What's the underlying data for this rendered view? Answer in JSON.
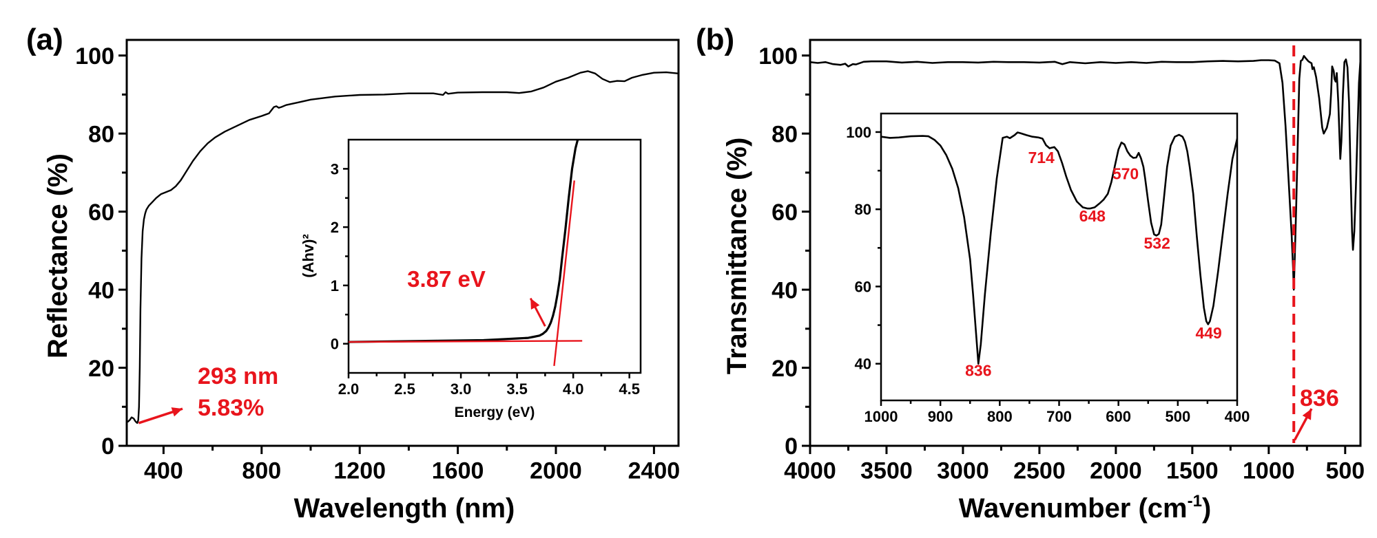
{
  "colors": {
    "annotation": "#e8141c",
    "curve": "#000000",
    "axis": "#000000"
  },
  "chart_data": [
    {
      "id": "a",
      "panel_label": "(a)",
      "type": "line",
      "title": "",
      "xlabel": "Wavelength (nm)",
      "ylabel": "Reflectance (%)",
      "xlim": [
        250,
        2500
      ],
      "ylim": [
        0,
        104
      ],
      "xticks": [
        400,
        800,
        1200,
        1600,
        2000,
        2400
      ],
      "xminor": [
        600,
        1000,
        1400,
        1800,
        2200
      ],
      "yticks": [
        0,
        20,
        40,
        60,
        80,
        100
      ],
      "yminor": [
        10,
        30,
        50,
        70,
        90
      ],
      "grid": false,
      "series": [
        {
          "name": "Reflectance",
          "x": [
            255,
            262,
            270,
            278,
            285,
            290,
            293,
            297,
            300,
            303,
            306,
            310,
            315,
            320,
            325,
            330,
            340,
            355,
            370,
            390,
            410,
            430,
            450,
            470,
            490,
            520,
            550,
            580,
            610,
            650,
            700,
            750,
            800,
            830,
            850,
            860,
            870,
            880,
            900,
            950,
            1000,
            1100,
            1200,
            1300,
            1400,
            1500,
            1540,
            1550,
            1560,
            1600,
            1700,
            1800,
            1850,
            1900,
            1950,
            2000,
            2050,
            2100,
            2130,
            2160,
            2190,
            2220,
            2250,
            2280,
            2310,
            2350,
            2400,
            2450,
            2500
          ],
          "y": [
            6.2,
            6.6,
            7.3,
            7.0,
            6.3,
            6.0,
            5.83,
            6.6,
            10,
            20,
            35,
            48,
            55,
            58,
            59.5,
            60.5,
            61.5,
            62.5,
            63.5,
            64.5,
            65.0,
            65.5,
            66.5,
            68,
            70,
            73,
            75.5,
            77.5,
            79.0,
            80.5,
            82.0,
            83.5,
            84.5,
            85.2,
            86.8,
            87.0,
            86.6,
            86.8,
            87.3,
            88.0,
            88.7,
            89.5,
            89.9,
            90.0,
            90.3,
            90.3,
            89.9,
            90.6,
            90.2,
            90.5,
            90.6,
            90.6,
            90.4,
            90.8,
            91.8,
            93.3,
            94.3,
            95.6,
            96.0,
            95.4,
            94.0,
            93.2,
            93.5,
            93.4,
            94.3,
            95.0,
            95.6,
            95.7,
            95.4
          ]
        }
      ],
      "annotations": [
        {
          "text_line1": "293 nm",
          "text_line2": "5.83%",
          "point": [
            293,
            5.83
          ],
          "arrow_to": [
            500,
            9.5
          ]
        }
      ],
      "inset": {
        "type": "line",
        "xlabel": "Energy (eV)",
        "ylabel": "(Ahv)²",
        "xlim": [
          2.0,
          4.6
        ],
        "ylim": [
          -0.5,
          3.5
        ],
        "xticks": [
          2.0,
          2.5,
          3.0,
          3.5,
          4.0,
          4.5
        ],
        "xtick_labels": [
          "2.0",
          "2.5",
          "3.0",
          "3.5",
          "4.0",
          "4.5"
        ],
        "xminor": [
          2.25,
          2.75,
          3.25,
          3.75,
          4.25
        ],
        "yticks": [
          0,
          1,
          2,
          3
        ],
        "yminor": [
          0.5,
          1.5,
          2.5
        ],
        "series": [
          {
            "name": "(Ahv)^2",
            "x": [
              2.0,
              2.4,
              2.8,
              3.2,
              3.4,
              3.5,
              3.6,
              3.65,
              3.7,
              3.73,
              3.76,
              3.78,
              3.8,
              3.82,
              3.84,
              3.86,
              3.88,
              3.9,
              3.93,
              3.96,
              3.99,
              4.02,
              4.04
            ],
            "y": [
              0.03,
              0.04,
              0.05,
              0.06,
              0.08,
              0.09,
              0.1,
              0.12,
              0.14,
              0.17,
              0.22,
              0.28,
              0.36,
              0.48,
              0.64,
              0.85,
              1.1,
              1.45,
              1.95,
              2.5,
              3.0,
              3.35,
              3.5
            ]
          }
        ],
        "fit_lines": [
          {
            "name": "baseline fit",
            "x": [
              2.0,
              4.08
            ],
            "y": [
              0.03,
              0.05
            ]
          },
          {
            "name": "edge fit",
            "x": [
              3.83,
              4.01
            ],
            "y": [
              -0.38,
              2.8
            ]
          }
        ],
        "annotation": {
          "text": "3.87 eV",
          "arrow_from": [
            3.75,
            0.3
          ],
          "arrow_to": [
            3.62,
            0.78
          ]
        }
      }
    },
    {
      "id": "b",
      "panel_label": "(b)",
      "type": "line",
      "title": "",
      "xlabel": "Wavenumber (cm",
      "xlabel_sup": "-1",
      "xlabel_end": ")",
      "ylabel": "Transmittance (%)",
      "xlim": [
        4000,
        400
      ],
      "ylim": [
        0,
        104
      ],
      "xticks": [
        4000,
        3500,
        3000,
        2500,
        2000,
        1500,
        1000,
        500
      ],
      "xminor": [
        3750,
        3250,
        2750,
        2250,
        1750,
        1250,
        750
      ],
      "yticks": [
        0,
        20,
        40,
        60,
        80,
        100
      ],
      "yminor": [
        10,
        30,
        50,
        70,
        90
      ],
      "grid": false,
      "series": [
        {
          "name": "Transmittance",
          "x": [
            4000,
            3950,
            3900,
            3850,
            3800,
            3770,
            3750,
            3720,
            3700,
            3650,
            3600,
            3500,
            3400,
            3300,
            3200,
            3100,
            3000,
            2900,
            2800,
            2700,
            2600,
            2500,
            2400,
            2350,
            2300,
            2200,
            2100,
            2000,
            1900,
            1800,
            1700,
            1600,
            1500,
            1400,
            1300,
            1200,
            1100,
            1050,
            1000,
            960,
            930,
            910,
            890,
            870,
            850,
            840,
            836,
            830,
            820,
            810,
            800,
            790,
            780,
            770,
            760,
            740,
            720,
            714,
            705,
            690,
            670,
            650,
            640,
            620,
            600,
            592,
            585,
            575,
            570,
            562,
            555,
            545,
            538,
            532,
            525,
            515,
            505,
            495,
            485,
            475,
            465,
            455,
            449,
            440,
            430,
            420,
            410,
            400
          ],
          "y": [
            98.3,
            98.1,
            98.3,
            97.8,
            97.6,
            97.9,
            97.2,
            97.8,
            97.7,
            98.4,
            98.5,
            98.5,
            98.2,
            98.4,
            98.1,
            98.3,
            98.3,
            98.2,
            98.4,
            98.3,
            98.3,
            98.2,
            98.4,
            97.8,
            98.3,
            98.0,
            98.3,
            98.1,
            98.3,
            98.1,
            98.4,
            98.3,
            98.3,
            98.5,
            98.6,
            98.5,
            98.6,
            98.8,
            98.8,
            98.7,
            98.0,
            93.0,
            82.0,
            68.0,
            54.0,
            45.0,
            40.0,
            48.0,
            62.0,
            78.0,
            94.0,
            98.6,
            98.9,
            99.9,
            99.4,
            98.5,
            98.0,
            96.5,
            97.0,
            94.5,
            89.0,
            81.5,
            80.0,
            81.5,
            85.0,
            90.5,
            97.2,
            96.0,
            94.0,
            93.3,
            95.5,
            88.0,
            80.0,
            73.5,
            78.0,
            90.0,
            98.3,
            99.0,
            97.0,
            88.0,
            70.0,
            55.0,
            50.2,
            55.0,
            66.0,
            80.0,
            93.0,
            99.0
          ]
        }
      ],
      "reference_line": {
        "x": 836,
        "style": "dashed",
        "label": "836",
        "arrow_from": [
          830,
          1.5
        ],
        "arrow_to": [
          720,
          9.5
        ]
      },
      "inset": {
        "type": "line",
        "xlabel": "",
        "ylabel": "",
        "xlim": [
          1000,
          400
        ],
        "ylim": [
          30.5,
          104.8
        ],
        "xticks": [
          1000,
          900,
          800,
          700,
          600,
          500,
          400
        ],
        "xtick_labels": [
          "1000",
          "900",
          "800",
          "700",
          "600",
          "500",
          "400"
        ],
        "xminor": [
          950,
          850,
          750,
          650,
          550,
          450
        ],
        "yticks": [
          40,
          60,
          80,
          100
        ],
        "yminor": [
          50,
          70,
          90
        ],
        "series": [
          {
            "name": "Transmittance (inset)",
            "x": [
              1000,
              985,
              970,
              950,
              930,
              920,
              910,
              900,
              890,
              880,
              870,
              860,
              850,
              845,
              840,
              836,
              832,
              825,
              815,
              805,
              795,
              788,
              783,
              775,
              770,
              765,
              755,
              745,
              735,
              728,
              722,
              716,
              714,
              708,
              702,
              695,
              688,
              680,
              670,
              660,
              652,
              648,
              640,
              632,
              625,
              618,
              612,
              605,
              600,
              595,
              590,
              585,
              580,
              575,
              570,
              566,
              562,
              558,
              555,
              550,
              545,
              540,
              536,
              532,
              528,
              524,
              518,
              512,
              505,
              498,
              492,
              488,
              484,
              480,
              474,
              468,
              462,
              456,
              452,
              449,
              446,
              440,
              432,
              424,
              416,
              408,
              400
            ],
            "y": [
              98.8,
              98.5,
              98.6,
              98.9,
              99.0,
              98.9,
              98.0,
              96.5,
              94.0,
              90.5,
              85.5,
              78.0,
              67.0,
              58.0,
              48.0,
              40.0,
              45.0,
              58.0,
              74.0,
              88.0,
              98.5,
              98.8,
              98.4,
              99.2,
              99.9,
              99.7,
              99.2,
              98.8,
              98.6,
              98.3,
              96.6,
              95.8,
              95.9,
              96.1,
              95.0,
              92.0,
              88.5,
              85.0,
              82.0,
              80.5,
              80.2,
              80.2,
              80.5,
              81.5,
              82.5,
              84.0,
              87.0,
              92.0,
              95.5,
              97.3,
              96.8,
              95.0,
              93.9,
              93.3,
              93.4,
              94.6,
              93.2,
              91.0,
              88.0,
              82.0,
              76.5,
              73.5,
              73.2,
              73.6,
              76.0,
              82.0,
              91.0,
              96.5,
              98.8,
              99.3,
              98.8,
              97.5,
              95.0,
              91.0,
              84.0,
              73.0,
              63.0,
              54.5,
              51.0,
              50.2,
              51.0,
              55.0,
              64.0,
              74.0,
              84.0,
              93.0,
              98.3
            ]
          }
        ],
        "peak_labels": [
          {
            "text": "836",
            "x": 836,
            "y": 36.8
          },
          {
            "text": "714",
            "x": 730,
            "y": 92.0
          },
          {
            "text": "648",
            "x": 644,
            "y": 76.8
          },
          {
            "text": "570",
            "x": 588,
            "y": 87.8
          },
          {
            "text": "532",
            "x": 535,
            "y": 69.8
          },
          {
            "text": "449",
            "x": 448,
            "y": 46.5
          }
        ]
      }
    }
  ]
}
